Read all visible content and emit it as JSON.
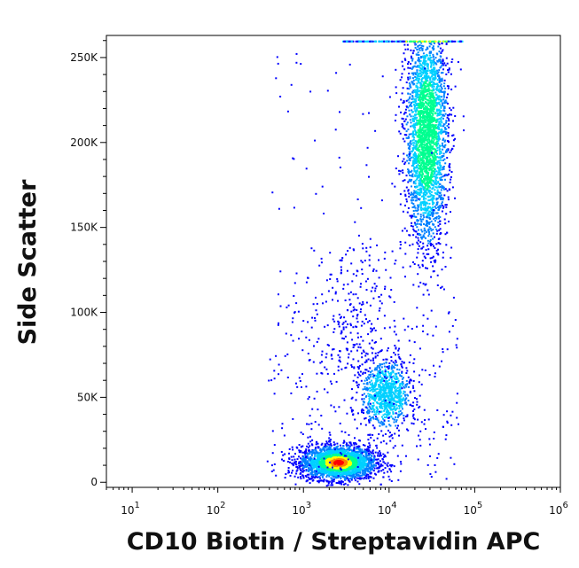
{
  "chart_data": {
    "type": "scatter",
    "title": "",
    "xlabel": "CD10 Biotin / Streptavidin APC",
    "ylabel": "Side Scatter",
    "x_scale": "log",
    "xlim": [
      5,
      1000000
    ],
    "ylim": [
      -3000,
      263000
    ],
    "x_ticks": [
      {
        "value": 10,
        "base": "10",
        "exp": "1"
      },
      {
        "value": 100,
        "base": "10",
        "exp": "2"
      },
      {
        "value": 1000,
        "base": "10",
        "exp": "3"
      },
      {
        "value": 10000,
        "base": "10",
        "exp": "4"
      },
      {
        "value": 100000,
        "base": "10",
        "exp": "5"
      },
      {
        "value": 1000000,
        "base": "10",
        "exp": "6"
      }
    ],
    "y_ticks": [
      {
        "value": 0,
        "label": "0"
      },
      {
        "value": 50000,
        "label": "50K"
      },
      {
        "value": 100000,
        "label": "100K"
      },
      {
        "value": 150000,
        "label": "150K"
      },
      {
        "value": 200000,
        "label": "200K"
      },
      {
        "value": 250000,
        "label": "250K"
      }
    ],
    "density_colors": [
      "#0000ff",
      "#0080ff",
      "#00d0ff",
      "#00ff90",
      "#ffff00",
      "#ff8000",
      "#ff0000"
    ],
    "populations": [
      {
        "x_center": 2500,
        "x_spread_decades": 0.22,
        "y_center": 12000,
        "y_spread": 5000,
        "weight": 2600,
        "peak_color": "#ff2000"
      },
      {
        "x_center": 9000,
        "x_spread_decades": 0.14,
        "y_center": 52000,
        "y_spread": 10000,
        "weight": 900,
        "peak_color": "#00d0ff"
      },
      {
        "x_center": 27000,
        "x_spread_decades": 0.12,
        "y_center": 205000,
        "y_spread": 32000,
        "weight": 2900,
        "peak_color": "#00ff80"
      }
    ],
    "grid": false,
    "legend": "none"
  }
}
